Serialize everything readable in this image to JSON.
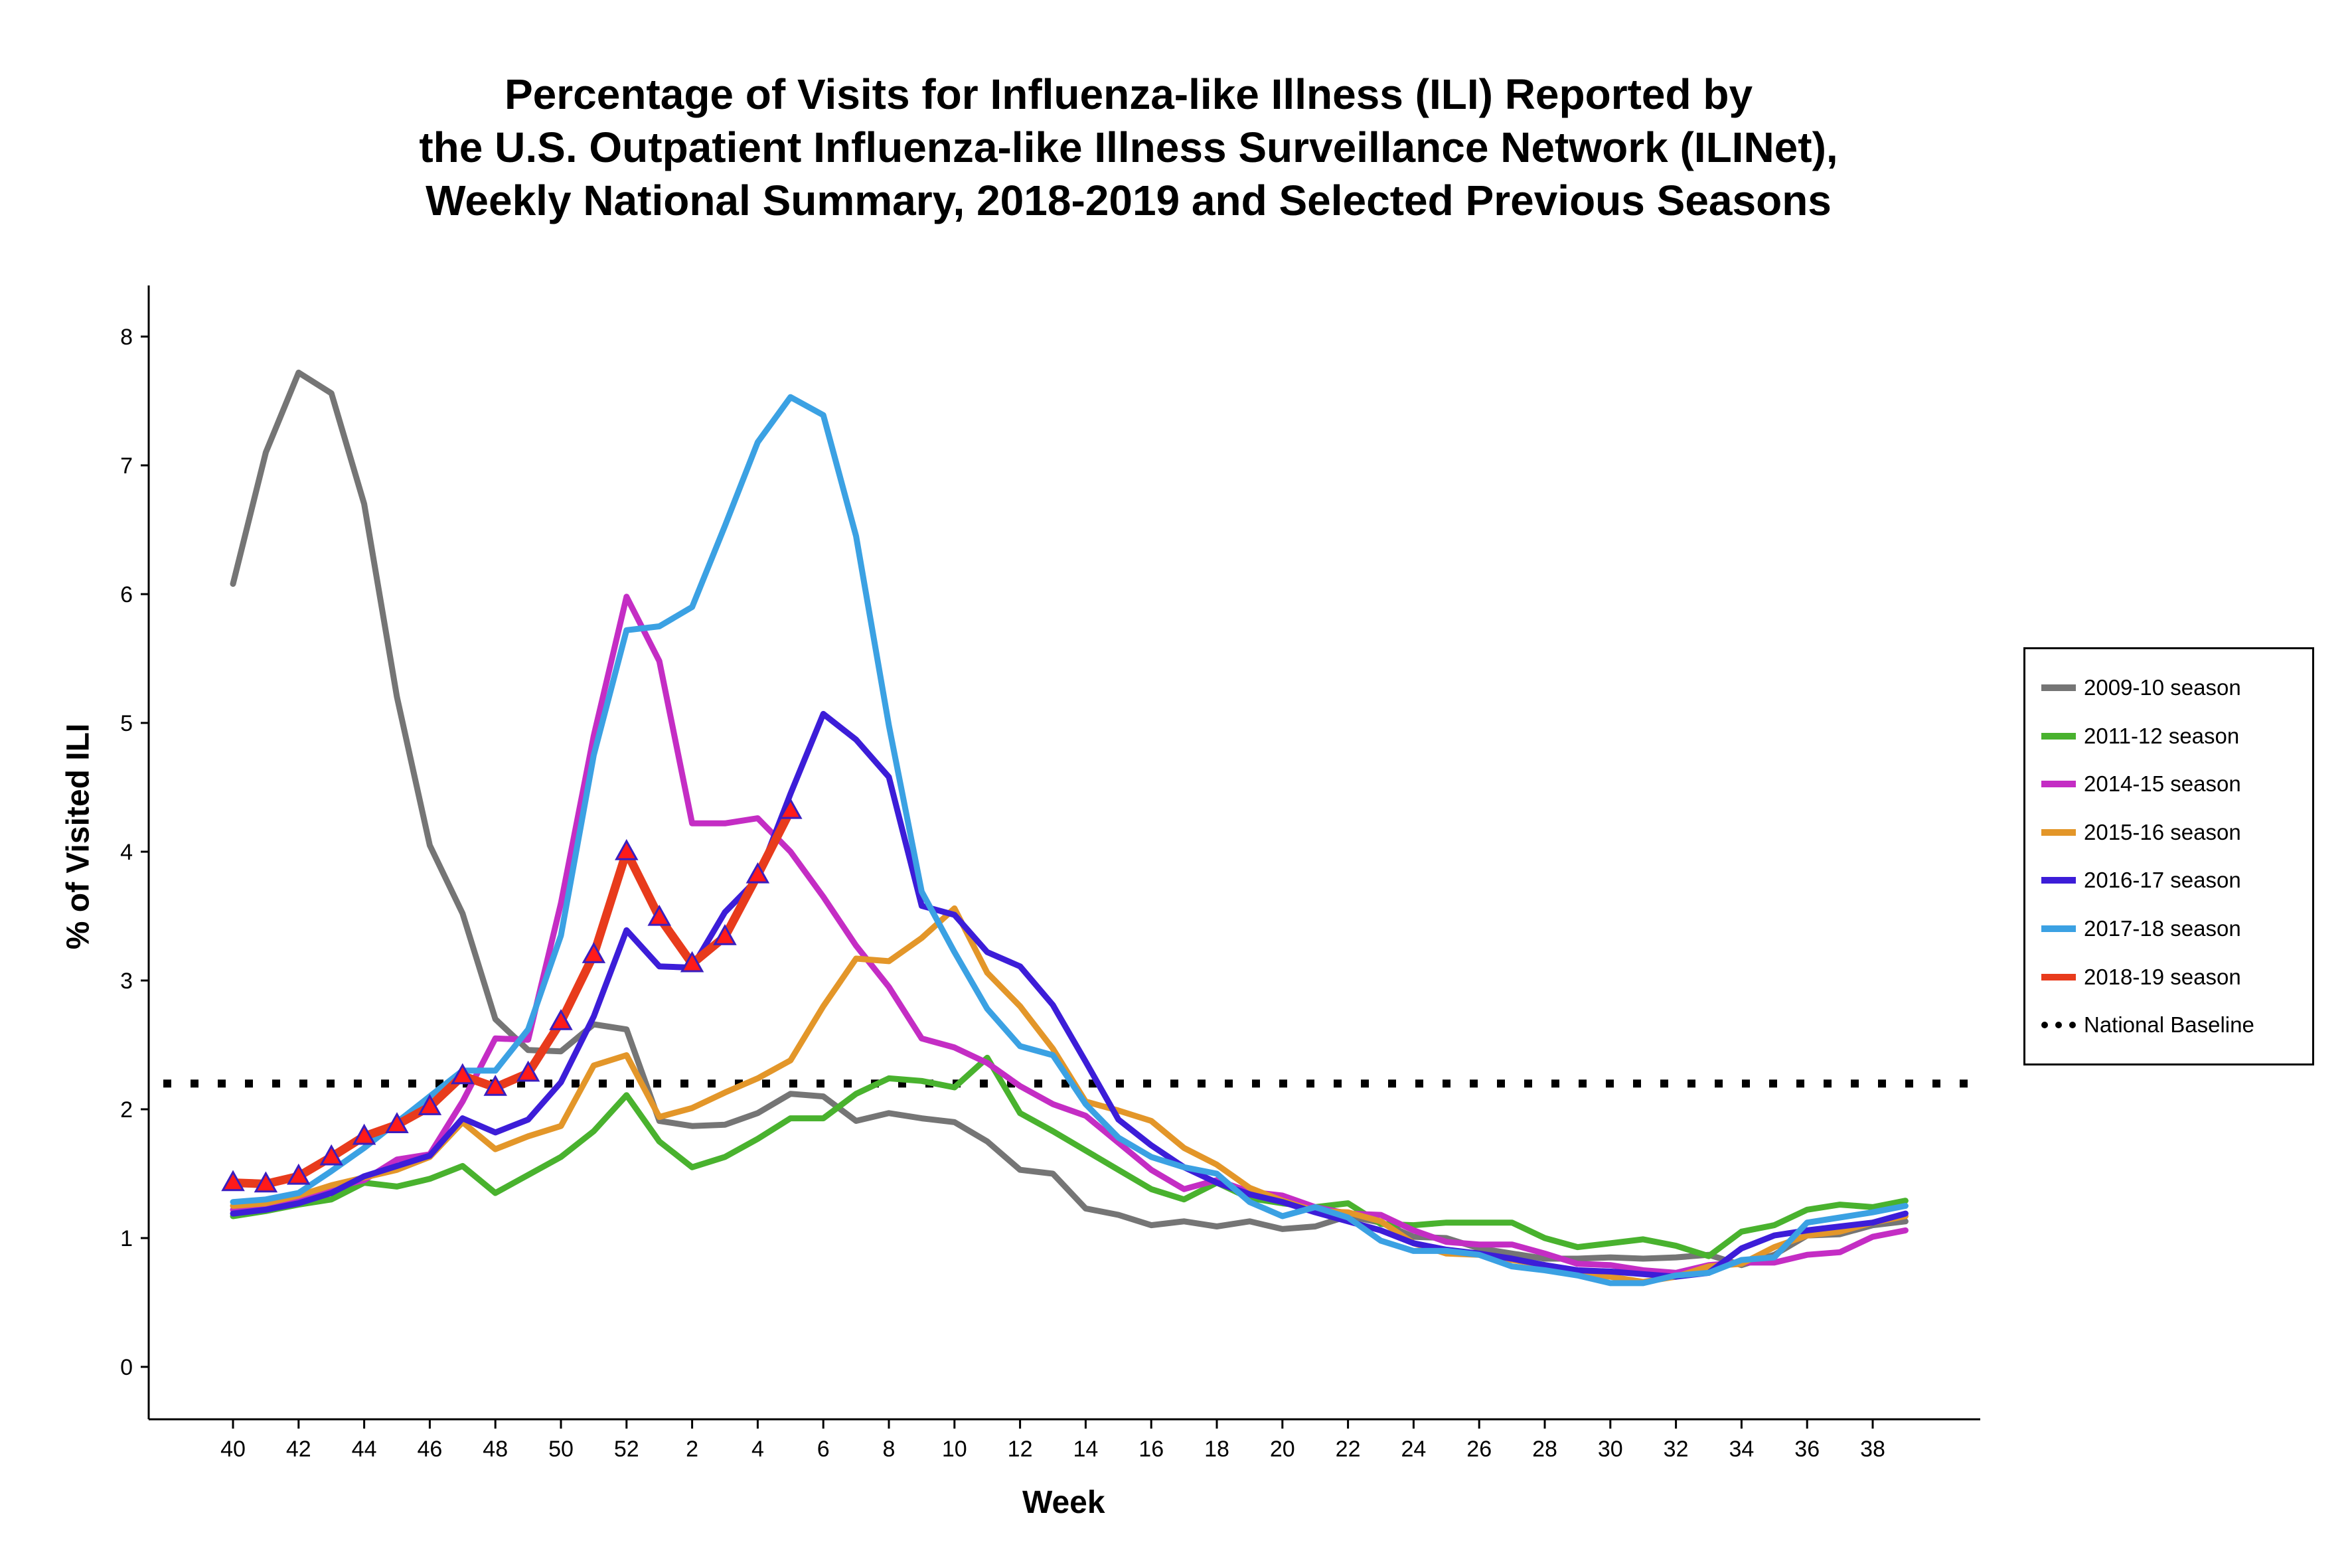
{
  "title_lines": [
    "Percentage of Visits for Influenza-like Illness (ILI) Reported by",
    "the U.S. Outpatient Influenza-like Illness Surveillance Network (ILINet),",
    "Weekly National Summary, 2018-2019 and Selected Previous Seasons"
  ],
  "chart_data": {
    "type": "line",
    "title": "Percentage of Visits for Influenza-like Illness (ILI) Reported by the U.S. Outpatient Influenza-like Illness Surveillance Network (ILINet), Weekly National Summary, 2018-2019 and Selected Previous Seasons",
    "xlabel": "Week",
    "ylabel": "% of Visited ILI",
    "ylim": [
      0,
      8
    ],
    "yticks": [
      0,
      1,
      2,
      3,
      4,
      5,
      6,
      7,
      8
    ],
    "x": [
      40,
      41,
      42,
      43,
      44,
      45,
      46,
      47,
      48,
      49,
      50,
      51,
      52,
      1,
      2,
      3,
      4,
      5,
      6,
      7,
      8,
      9,
      10,
      11,
      12,
      13,
      14,
      15,
      16,
      17,
      18,
      19,
      20,
      21,
      22,
      23,
      24,
      25,
      26,
      27,
      28,
      29,
      30,
      31,
      32,
      33,
      34,
      35,
      36,
      37,
      38,
      39
    ],
    "xtick_labels": [
      "40",
      "42",
      "44",
      "46",
      "48",
      "50",
      "52",
      "2",
      "4",
      "6",
      "8",
      "10",
      "12",
      "14",
      "16",
      "18",
      "20",
      "22",
      "24",
      "26",
      "28",
      "30",
      "32",
      "34",
      "36",
      "38"
    ],
    "grid": false,
    "legend_position": "right",
    "baseline": {
      "name": "National Baseline",
      "value": 2.2,
      "color": "#000000",
      "style": "dotted"
    },
    "series": [
      {
        "name": "2009-10 season",
        "color": "#757575",
        "values": [
          6.08,
          7.1,
          7.72,
          7.56,
          6.7,
          5.2,
          4.05,
          3.52,
          2.7,
          2.46,
          2.45,
          2.66,
          2.62,
          1.91,
          1.87,
          1.88,
          1.97,
          2.12,
          2.1,
          1.91,
          1.97,
          1.93,
          1.9,
          1.75,
          1.53,
          1.5,
          1.23,
          1.18,
          1.1,
          1.13,
          1.09,
          1.13,
          1.07,
          1.09,
          1.17,
          1.12,
          1.01,
          1.0,
          0.92,
          0.88,
          0.84,
          0.84,
          0.85,
          0.84,
          0.85,
          0.87,
          0.79,
          0.87,
          1.02,
          1.03,
          1.1,
          1.13
        ]
      },
      {
        "name": "2011-12 season",
        "color": "#49b22e",
        "values": [
          1.17,
          1.21,
          1.26,
          1.3,
          1.43,
          1.4,
          1.46,
          1.56,
          1.35,
          1.49,
          1.63,
          1.83,
          2.11,
          1.75,
          1.55,
          1.63,
          1.77,
          1.93,
          1.93,
          2.12,
          2.24,
          2.22,
          2.17,
          2.4,
          1.97,
          1.83,
          1.68,
          1.53,
          1.38,
          1.3,
          1.43,
          1.31,
          1.27,
          1.24,
          1.27,
          1.11,
          1.1,
          1.12,
          1.12,
          1.12,
          1.0,
          0.93,
          0.96,
          0.99,
          0.94,
          0.86,
          1.05,
          1.1,
          1.22,
          1.26,
          1.24,
          1.29
        ]
      },
      {
        "name": "2014-15 season",
        "color": "#c42dc4",
        "values": [
          1.22,
          1.24,
          1.3,
          1.39,
          1.45,
          1.61,
          1.65,
          2.06,
          2.55,
          2.54,
          3.6,
          4.9,
          5.98,
          5.48,
          4.22,
          4.22,
          4.26,
          4.0,
          3.65,
          3.27,
          2.95,
          2.55,
          2.48,
          2.36,
          2.18,
          2.04,
          1.95,
          1.74,
          1.53,
          1.38,
          1.45,
          1.36,
          1.33,
          1.24,
          1.19,
          1.18,
          1.06,
          0.97,
          0.95,
          0.95,
          0.88,
          0.8,
          0.79,
          0.75,
          0.73,
          0.79,
          0.81,
          0.81,
          0.87,
          0.89,
          1.01,
          1.06
        ]
      },
      {
        "name": "2015-16 season",
        "color": "#e39629",
        "values": [
          1.25,
          1.27,
          1.33,
          1.41,
          1.47,
          1.53,
          1.63,
          1.9,
          1.69,
          1.79,
          1.87,
          2.34,
          2.42,
          1.94,
          2.01,
          2.13,
          2.24,
          2.38,
          2.8,
          3.17,
          3.15,
          3.33,
          3.56,
          3.06,
          2.8,
          2.47,
          2.06,
          1.99,
          1.91,
          1.7,
          1.57,
          1.39,
          1.29,
          1.21,
          1.2,
          1.13,
          0.96,
          0.88,
          0.87,
          0.83,
          0.79,
          0.72,
          0.7,
          0.66,
          0.7,
          0.78,
          0.8,
          0.93,
          1.02,
          1.05,
          1.12,
          1.17
        ]
      },
      {
        "name": "2016-17 season",
        "color": "#3c1dd8",
        "values": [
          1.19,
          1.22,
          1.27,
          1.35,
          1.48,
          1.56,
          1.64,
          1.93,
          1.82,
          1.92,
          2.21,
          2.72,
          3.39,
          3.11,
          3.1,
          3.53,
          3.79,
          4.45,
          5.07,
          4.87,
          4.58,
          3.58,
          3.51,
          3.22,
          3.11,
          2.81,
          2.37,
          1.92,
          1.72,
          1.55,
          1.43,
          1.34,
          1.28,
          1.2,
          1.13,
          1.06,
          0.96,
          0.91,
          0.88,
          0.84,
          0.79,
          0.75,
          0.74,
          0.72,
          0.7,
          0.73,
          0.92,
          1.02,
          1.06,
          1.09,
          1.12,
          1.19
        ]
      },
      {
        "name": "2017-18 season",
        "color": "#3ba1e3",
        "values": [
          1.28,
          1.3,
          1.35,
          1.52,
          1.7,
          1.9,
          2.1,
          2.3,
          2.3,
          2.62,
          3.35,
          4.75,
          5.72,
          5.75,
          5.9,
          6.53,
          7.18,
          7.53,
          7.39,
          6.45,
          4.98,
          3.69,
          3.22,
          2.78,
          2.49,
          2.42,
          2.04,
          1.78,
          1.63,
          1.55,
          1.5,
          1.28,
          1.17,
          1.24,
          1.16,
          0.98,
          0.9,
          0.9,
          0.87,
          0.78,
          0.75,
          0.71,
          0.65,
          0.65,
          0.71,
          0.73,
          0.83,
          0.85,
          1.12,
          1.16,
          1.2,
          1.25
        ]
      },
      {
        "name": "2018-19 season",
        "color": "#e83b1c",
        "marker": "triangle",
        "values": [
          1.43,
          1.42,
          1.48,
          1.63,
          1.79,
          1.88,
          2.02,
          2.26,
          2.17,
          2.28,
          2.68,
          3.2,
          4.0,
          3.49,
          3.13,
          3.34,
          3.82,
          4.32,
          null,
          null,
          null,
          null,
          null,
          null,
          null,
          null,
          null,
          null,
          null,
          null,
          null,
          null,
          null,
          null,
          null,
          null,
          null,
          null,
          null,
          null,
          null,
          null,
          null,
          null,
          null,
          null,
          null,
          null,
          null,
          null,
          null,
          null
        ]
      }
    ]
  }
}
